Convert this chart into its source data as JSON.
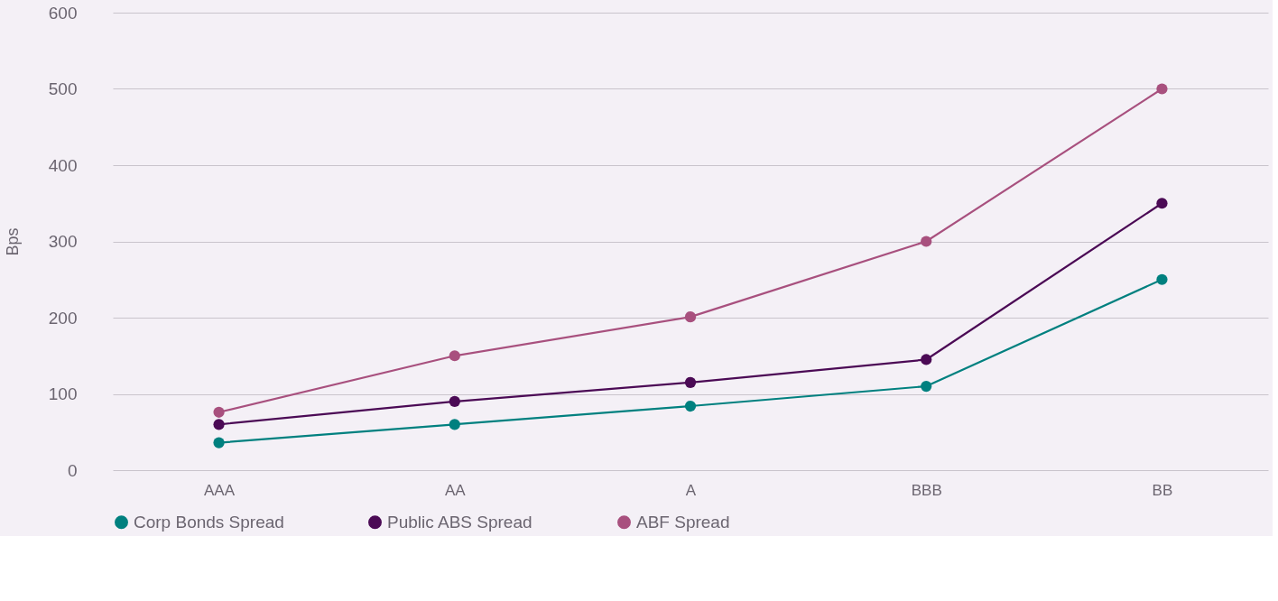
{
  "chart_data": {
    "type": "line",
    "ylabel": "Bps",
    "categories": [
      "AAA",
      "AA",
      "A",
      "BBB",
      "BB"
    ],
    "series": [
      {
        "name": "Corp Bonds Spread",
        "color": "#00807f",
        "values": [
          36,
          60,
          84,
          110,
          250
        ]
      },
      {
        "name": "Public ABS Spread",
        "color": "#4b0a55",
        "values": [
          60,
          90,
          115,
          145,
          350
        ]
      },
      {
        "name": "ABF Spread",
        "color": "#a8507e",
        "values": [
          76,
          150,
          201,
          300,
          500
        ]
      }
    ],
    "ylim": [
      0,
      600
    ],
    "yticks": [
      0,
      100,
      200,
      300,
      400,
      500,
      600
    ],
    "grid": "y",
    "legend": "bottom",
    "marker": "circle",
    "line_style": "solid"
  }
}
